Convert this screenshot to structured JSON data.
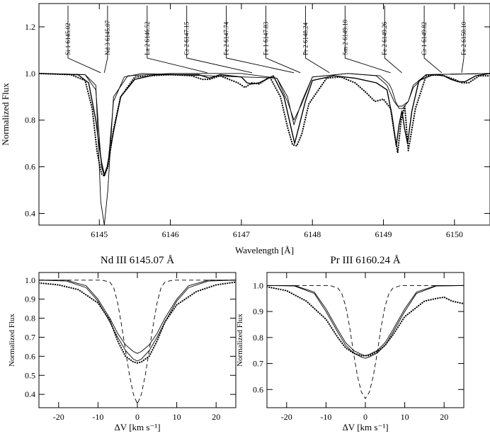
{
  "chart_data": [
    {
      "type": "line",
      "title": "",
      "xlabel": "Wavelength [Å]",
      "ylabel": "Normalized Flux",
      "xlim": [
        6144.15,
        6150.5
      ],
      "ylim": [
        0.35,
        1.3
      ],
      "xticks": [
        6145,
        6146,
        6147,
        6148,
        6149,
        6150
      ],
      "yticks": [
        0.4,
        0.6,
        0.8,
        1.0,
        1.2
      ],
      "ytick_labels": [
        "0.4",
        "0.6",
        "0.8",
        "1.0",
        "1.2"
      ],
      "line_labels": [
        {
          "text": "Si 1 6145.02",
          "wl": 6145.02
        },
        {
          "text": "Nd 3 6145.07",
          "wl": 6145.07
        },
        {
          "text": "La 2 6146.52",
          "wl": 6146.52
        },
        {
          "text": "Cr 2 6147.15",
          "wl": 6147.15
        },
        {
          "text": "Fe 2 6147.74",
          "wl": 6147.74
        },
        {
          "text": "Fe 1 6147.83",
          "wl": 6147.83
        },
        {
          "text": "Pr 2 6148.24",
          "wl": 6148.24
        },
        {
          "text": "Sm 2 6149.10",
          "wl": 6149.1
        },
        {
          "text": "Fe 2 6149.26",
          "wl": 6149.26
        },
        {
          "text": "Cr 1 6149.82",
          "wl": 6149.82
        },
        {
          "text": "Fe 2 6150.10",
          "wl": 6150.1
        }
      ],
      "series": [
        {
          "style": "dotted-observed",
          "x": [
            6144.15,
            6144.6,
            6144.8,
            6144.9,
            6144.97,
            6145.03,
            6145.07,
            6145.12,
            6145.2,
            6145.3,
            6145.5,
            6145.7,
            6146.0,
            6146.3,
            6146.45,
            6146.55,
            6146.7,
            6146.95,
            6147.05,
            6147.15,
            6147.25,
            6147.4,
            6147.55,
            6147.65,
            6147.72,
            6147.78,
            6147.85,
            6147.95,
            6148.2,
            6148.4,
            6148.6,
            6148.75,
            6148.88,
            6149.0,
            6149.1,
            6149.15,
            6149.2,
            6149.25,
            6149.3,
            6149.35,
            6149.45,
            6149.6,
            6149.8,
            6150.0,
            6150.1,
            6150.2,
            6150.35,
            6150.5
          ],
          "y": [
            1.0,
            0.995,
            0.97,
            0.85,
            0.66,
            0.57,
            0.56,
            0.6,
            0.76,
            0.9,
            0.985,
            0.99,
            0.995,
            0.99,
            0.975,
            0.975,
            0.99,
            0.96,
            0.94,
            0.96,
            0.955,
            0.985,
            0.9,
            0.77,
            0.695,
            0.69,
            0.74,
            0.87,
            0.98,
            0.985,
            0.96,
            0.92,
            0.88,
            0.89,
            0.85,
            0.75,
            0.66,
            0.8,
            0.86,
            0.67,
            0.85,
            0.99,
            0.995,
            0.975,
            0.96,
            0.96,
            0.99,
            0.99
          ]
        },
        {
          "style": "fit",
          "x": [
            6144.15,
            6144.7,
            6144.85,
            6144.95,
            6145.03,
            6145.07,
            6145.11,
            6145.2,
            6145.3,
            6145.5,
            6145.8,
            6146.4,
            6146.55,
            6146.7,
            6147.0,
            6147.08,
            6147.15,
            6147.25,
            6147.45,
            6147.6,
            6147.75,
            6147.9,
            6148.0,
            6148.3,
            6148.6,
            6148.9,
            6149.05,
            6149.12,
            6149.18,
            6149.22,
            6149.26,
            6149.3,
            6149.34,
            6149.4,
            6149.5,
            6149.7,
            6149.85,
            6149.95,
            6150.05,
            6150.15,
            6150.3,
            6150.5
          ],
          "y": [
            1.0,
            0.995,
            0.96,
            0.8,
            0.62,
            0.565,
            0.6,
            0.75,
            0.9,
            0.975,
            0.995,
            0.995,
            0.98,
            0.995,
            0.985,
            0.96,
            0.955,
            0.96,
            0.99,
            0.9,
            0.7,
            0.88,
            0.97,
            0.99,
            0.98,
            0.96,
            0.93,
            0.82,
            0.69,
            0.78,
            0.84,
            0.76,
            0.7,
            0.84,
            0.97,
            0.995,
            0.99,
            0.975,
            0.965,
            0.965,
            0.99,
            1.0
          ]
        },
        {
          "style": "thin-a",
          "x": [
            6144.15,
            6144.8,
            6144.95,
            6145.02,
            6145.07,
            6145.12,
            6145.2,
            6145.4,
            6146.0,
            6147.0,
            6147.5,
            6147.65,
            6147.74,
            6147.85,
            6148.0,
            6148.5,
            6148.9,
            6149.05,
            6149.15,
            6149.2,
            6149.26,
            6149.35,
            6149.42,
            6149.6,
            6150.5
          ],
          "y": [
            1.0,
            0.995,
            0.95,
            0.45,
            0.35,
            0.5,
            0.9,
            0.99,
            1.0,
            1.0,
            0.98,
            0.9,
            0.78,
            0.88,
            0.985,
            1.0,
            0.99,
            0.95,
            0.88,
            0.86,
            0.86,
            0.88,
            0.94,
            0.995,
            1.0
          ]
        },
        {
          "style": "thin-b",
          "x": [
            6144.15,
            6144.8,
            6144.95,
            6145.03,
            6145.07,
            6145.12,
            6145.2,
            6145.35,
            6145.6,
            6147.5,
            6147.65,
            6147.74,
            6147.85,
            6148.0,
            6148.5,
            6148.95,
            6149.08,
            6149.12,
            6149.17,
            6149.22,
            6149.27,
            6149.35,
            6149.42,
            6149.6,
            6150.5
          ],
          "y": [
            1.0,
            0.995,
            0.93,
            0.6,
            0.56,
            0.6,
            0.88,
            0.985,
            1.0,
            0.98,
            0.88,
            0.8,
            0.87,
            0.985,
            1.0,
            0.99,
            0.955,
            0.93,
            0.88,
            0.85,
            0.85,
            0.88,
            0.95,
            0.995,
            1.0
          ]
        }
      ]
    },
    {
      "type": "line",
      "title": "Nd III 6145.07 Å",
      "xlabel": "ΔV [km s⁻¹]",
      "ylabel": "Normalized Flux",
      "xlim": [
        -25,
        25
      ],
      "ylim": [
        0.33,
        1.04
      ],
      "xticks": [
        -20,
        -10,
        0,
        10,
        20
      ],
      "yticks": [
        0.4,
        0.5,
        0.6,
        0.7,
        0.8,
        0.9,
        1.0
      ],
      "ytick_labels": [
        "0.4",
        "0.5",
        "0.6",
        "0.7",
        "0.8",
        "0.9",
        "1.0"
      ],
      "series": [
        {
          "style": "dotted-observed",
          "x": [
            -25,
            -20,
            -15,
            -10,
            -7,
            -5,
            -3,
            -1,
            0,
            1,
            3,
            5,
            7,
            10,
            15,
            20,
            25
          ],
          "y": [
            0.985,
            0.975,
            0.95,
            0.88,
            0.79,
            0.68,
            0.6,
            0.57,
            0.565,
            0.57,
            0.6,
            0.68,
            0.78,
            0.87,
            0.94,
            0.975,
            0.99
          ]
        },
        {
          "style": "thin-a",
          "x": [
            -25,
            -18,
            -13,
            -10,
            -7,
            -5,
            -3,
            -1,
            0,
            1,
            3,
            5,
            7,
            10,
            13,
            18,
            25
          ],
          "y": [
            1.0,
            1.0,
            0.97,
            0.9,
            0.8,
            0.72,
            0.66,
            0.625,
            0.615,
            0.625,
            0.66,
            0.72,
            0.8,
            0.9,
            0.97,
            1.0,
            1.0
          ]
        },
        {
          "style": "thin-b",
          "x": [
            -25,
            -18,
            -13,
            -10,
            -7,
            -5,
            -3,
            -1,
            0,
            1,
            3,
            5,
            7,
            10,
            13,
            18,
            25
          ],
          "y": [
            1.0,
            0.995,
            0.96,
            0.89,
            0.78,
            0.7,
            0.63,
            0.585,
            0.575,
            0.585,
            0.63,
            0.7,
            0.78,
            0.89,
            0.96,
            0.995,
            1.0
          ]
        },
        {
          "style": "dashed",
          "x": [
            -25,
            -9,
            -7,
            -6,
            -5,
            -4,
            -3,
            -2,
            -1,
            0,
            1,
            2,
            3,
            4,
            5,
            6,
            7,
            9,
            25
          ],
          "y": [
            1.0,
            1.0,
            0.99,
            0.96,
            0.88,
            0.76,
            0.63,
            0.5,
            0.4,
            0.35,
            0.4,
            0.5,
            0.63,
            0.76,
            0.88,
            0.96,
            0.99,
            1.0,
            1.0
          ]
        }
      ]
    },
    {
      "type": "line",
      "title": "Pr III 6160.24 Å",
      "xlabel": "ΔV [km s⁻¹]",
      "ylabel": "Normalized Flux",
      "xlim": [
        -25,
        25
      ],
      "ylim": [
        0.53,
        1.05
      ],
      "xticks": [
        -20,
        -10,
        0,
        10,
        20
      ],
      "yticks": [
        0.6,
        0.7,
        0.8,
        0.9,
        1.0
      ],
      "ytick_labels": [
        "0.6",
        "0.7",
        "0.8",
        "0.9",
        "1.0"
      ],
      "series": [
        {
          "style": "dotted-observed",
          "x": [
            -25,
            -20,
            -15,
            -10,
            -7,
            -5,
            -3,
            -1,
            0,
            1,
            3,
            5,
            7,
            10,
            15,
            18,
            20,
            22,
            25
          ],
          "y": [
            0.995,
            0.98,
            0.94,
            0.87,
            0.8,
            0.76,
            0.74,
            0.73,
            0.73,
            0.73,
            0.745,
            0.77,
            0.81,
            0.88,
            0.94,
            0.95,
            0.955,
            0.94,
            0.93
          ]
        },
        {
          "style": "thin-a",
          "x": [
            -25,
            -18,
            -13,
            -10,
            -7,
            -5,
            -3,
            -1,
            0,
            1,
            3,
            5,
            7,
            10,
            13,
            18,
            25
          ],
          "y": [
            1.0,
            1.0,
            0.975,
            0.91,
            0.83,
            0.78,
            0.75,
            0.735,
            0.73,
            0.735,
            0.75,
            0.78,
            0.83,
            0.91,
            0.975,
            1.0,
            1.0
          ]
        },
        {
          "style": "thin-b",
          "x": [
            -25,
            -18,
            -13,
            -10,
            -7,
            -5,
            -3,
            -1,
            0,
            1,
            3,
            5,
            7,
            10,
            13,
            18,
            25
          ],
          "y": [
            1.0,
            0.998,
            0.97,
            0.9,
            0.82,
            0.77,
            0.74,
            0.725,
            0.72,
            0.725,
            0.74,
            0.77,
            0.82,
            0.9,
            0.97,
            0.998,
            1.0
          ]
        },
        {
          "style": "dashed",
          "x": [
            -25,
            -9,
            -7,
            -6,
            -5,
            -4,
            -3,
            -2,
            -1,
            0,
            1,
            2,
            3,
            4,
            5,
            6,
            7,
            9,
            25
          ],
          "y": [
            1.0,
            1.0,
            0.99,
            0.97,
            0.92,
            0.84,
            0.74,
            0.65,
            0.59,
            0.565,
            0.59,
            0.65,
            0.74,
            0.84,
            0.92,
            0.97,
            0.99,
            1.0,
            1.0
          ]
        }
      ]
    }
  ]
}
